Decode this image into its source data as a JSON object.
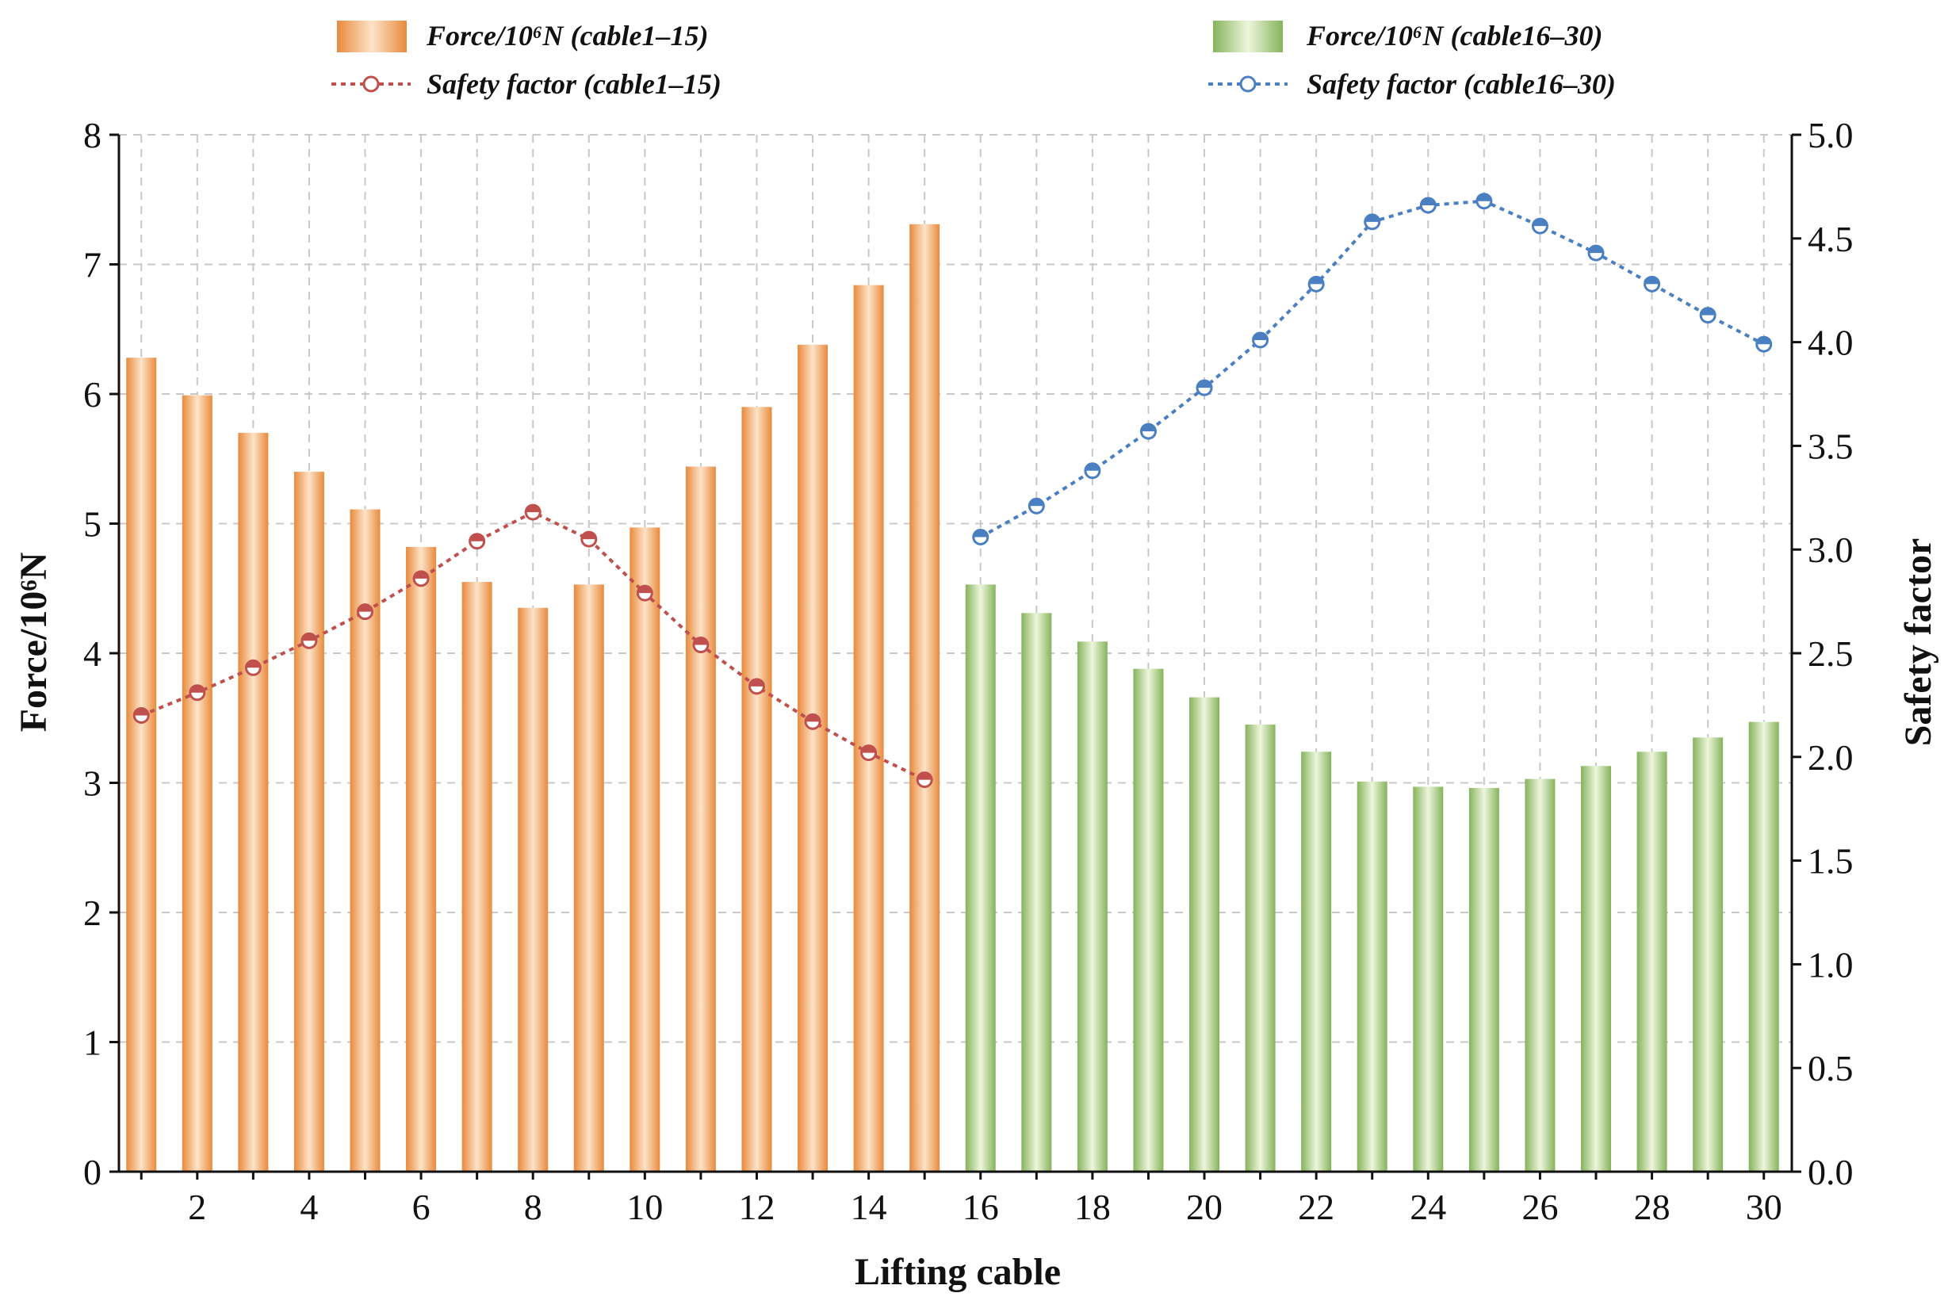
{
  "chart_data": {
    "type": "bar",
    "xlabel": "Lifting cable",
    "ylabel": "Force/10⁶N",
    "y2label": "Safety factor",
    "x": [
      1,
      2,
      3,
      4,
      5,
      6,
      7,
      8,
      9,
      10,
      11,
      12,
      13,
      14,
      15,
      16,
      17,
      18,
      19,
      20,
      21,
      22,
      23,
      24,
      25,
      26,
      27,
      28,
      29,
      30
    ],
    "xlim": [
      0.6,
      30.5
    ],
    "ylim": [
      0,
      8
    ],
    "y2lim": [
      0,
      5
    ],
    "xticks": [
      "2",
      "4",
      "6",
      "8",
      "10",
      "12",
      "14",
      "16",
      "18",
      "20",
      "22",
      "24",
      "26",
      "28",
      "30"
    ],
    "yticks": [
      "0",
      "1",
      "2",
      "3",
      "4",
      "5",
      "6",
      "7",
      "8"
    ],
    "y2ticks": [
      "0.0",
      "0.5",
      "1.0",
      "1.5",
      "2.0",
      "2.5",
      "3.0",
      "3.5",
      "4.0",
      "4.5",
      "5.0"
    ],
    "grid": true,
    "legend_position": "top",
    "series": [
      {
        "name": "Force/10⁶N (cable1–15)",
        "kind": "bar",
        "axis": "left",
        "color": "#f0a868",
        "x": [
          1,
          2,
          3,
          4,
          5,
          6,
          7,
          8,
          9,
          10,
          11,
          12,
          13,
          14,
          15
        ],
        "values": [
          6.28,
          5.99,
          5.7,
          5.4,
          5.11,
          4.82,
          4.55,
          4.35,
          4.53,
          4.97,
          5.44,
          5.9,
          6.38,
          6.84,
          7.31
        ]
      },
      {
        "name": "Force/10⁶N (cable16–30)",
        "kind": "bar",
        "axis": "left",
        "color": "#9cc27a",
        "x": [
          16,
          17,
          18,
          19,
          20,
          21,
          22,
          23,
          24,
          25,
          26,
          27,
          28,
          29,
          30
        ],
        "values": [
          4.53,
          4.31,
          4.09,
          3.88,
          3.66,
          3.45,
          3.24,
          3.01,
          2.97,
          2.96,
          3.03,
          3.13,
          3.24,
          3.35,
          3.47
        ]
      },
      {
        "name": "Safety factor (cable1–15)",
        "kind": "line",
        "axis": "right",
        "color": "#c0504d",
        "x": [
          1,
          2,
          3,
          4,
          5,
          6,
          7,
          8,
          9,
          10,
          11,
          12,
          13,
          14,
          15
        ],
        "values": [
          2.2,
          2.31,
          2.43,
          2.56,
          2.7,
          2.86,
          3.04,
          3.18,
          3.05,
          2.79,
          2.54,
          2.34,
          2.17,
          2.02,
          1.89
        ]
      },
      {
        "name": "Safety factor (cable16–30)",
        "kind": "line",
        "axis": "right",
        "color": "#4a7fc1",
        "x": [
          16,
          17,
          18,
          19,
          20,
          21,
          22,
          23,
          24,
          25,
          26,
          27,
          28,
          29,
          30
        ],
        "values": [
          3.06,
          3.21,
          3.38,
          3.57,
          3.78,
          4.01,
          4.28,
          4.58,
          4.66,
          4.68,
          4.56,
          4.43,
          4.28,
          4.13,
          3.99
        ]
      }
    ]
  }
}
